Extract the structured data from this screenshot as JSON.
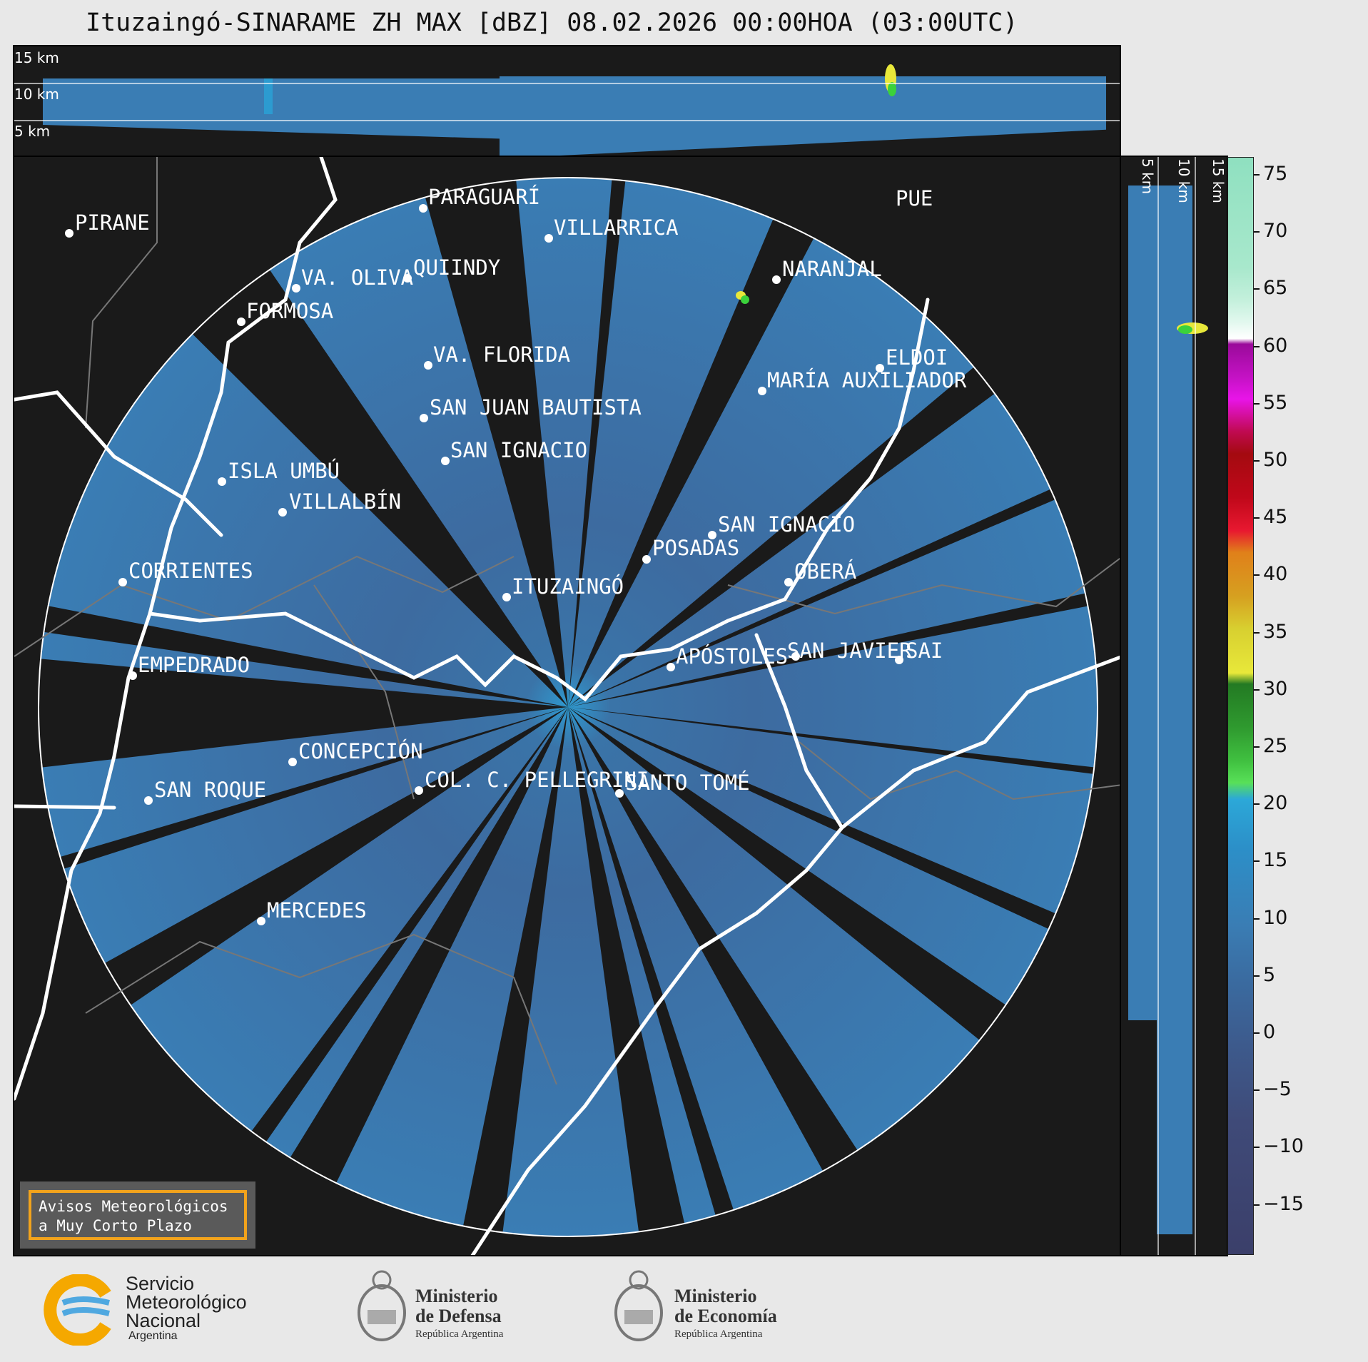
{
  "title": "Ituzaingó-SINARAME ZH MAX [dBZ] 08.02.2026 00:00HOA (03:00UTC)",
  "top_panel": {
    "km_labels": [
      "15 km",
      "10 km",
      "5 km"
    ]
  },
  "side_panel": {
    "km_labels": [
      "5 km",
      "10 km",
      "15 km"
    ]
  },
  "colorbar": {
    "ticks": [
      "75",
      "70",
      "65",
      "60",
      "55",
      "50",
      "45",
      "40",
      "35",
      "30",
      "25",
      "20",
      "15",
      "10",
      "5",
      "0",
      "−5",
      "−10",
      "−15"
    ]
  },
  "cities": [
    {
      "name": "PIRANE"
    },
    {
      "name": "PARAGUARÍ"
    },
    {
      "name": "VILLARRICA"
    },
    {
      "name": "PUE"
    },
    {
      "name": "QUIINDY"
    },
    {
      "name": "VA. OLIVA"
    },
    {
      "name": "NARANJAL"
    },
    {
      "name": "FORMOSA"
    },
    {
      "name": "VA. FLORIDA"
    },
    {
      "name": "ELDOI"
    },
    {
      "name": "MARÍA AUXILIADOR"
    },
    {
      "name": "SAN JUAN BAUTISTA"
    },
    {
      "name": "SAN IGNACIO"
    },
    {
      "name": "ISLA UMBÚ"
    },
    {
      "name": "VILLALBÍN"
    },
    {
      "name": "SAN IGNACIO"
    },
    {
      "name": "POSADAS"
    },
    {
      "name": "CORRIENTES"
    },
    {
      "name": "ITUZAINGÓ"
    },
    {
      "name": "OBERÁ"
    },
    {
      "name": "EMPEDRADO"
    },
    {
      "name": "APÓSTOLES"
    },
    {
      "name": "SAN JAVIER"
    },
    {
      "name": "SAI"
    },
    {
      "name": "CONCEPCIÓN"
    },
    {
      "name": "COL. C. PELLEGRINI"
    },
    {
      "name": "SANTO TOMÉ"
    },
    {
      "name": "SAN ROQUE"
    },
    {
      "name": "MERCEDES"
    }
  ],
  "avisos": {
    "line1": "Avisos Meteorológicos",
    "line2": "a Muy Corto Plazo"
  },
  "logos": {
    "smn": {
      "line1": "Servicio",
      "line2": "Meteorológico",
      "line3": "Nacional",
      "line4": "Argentina"
    },
    "defensa": {
      "line1": "Ministerio",
      "line2": "de Defensa",
      "line3": "República Argentina"
    },
    "economia": {
      "line1": "Ministerio",
      "line2": "de Economía",
      "line3": "República Argentina"
    }
  },
  "colors": {
    "echo": "#3a7db4",
    "background": "#1a1a1a",
    "accent_orange": "#f2a31c"
  }
}
